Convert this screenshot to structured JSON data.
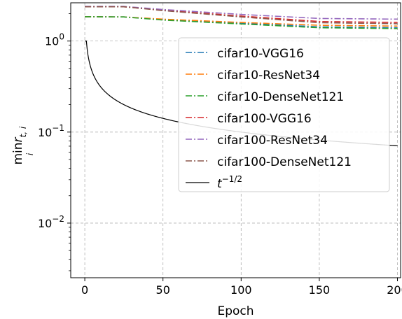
{
  "chart_data": {
    "type": "line",
    "xlabel": "Epoch",
    "ylabel_main": "min",
    "ylabel_sub": "i",
    "ylabel_subscript": "r",
    "ylabel_subscript_index": "t, i",
    "xlim": [
      -9,
      202
    ],
    "ylim_log10": [
      -2.6,
      0.42
    ],
    "yscale": "log",
    "grid": true,
    "legend_position": "upper right",
    "x_ticks": [
      0,
      50,
      100,
      150,
      200
    ],
    "x_tick_labels": [
      "0",
      "50",
      "100",
      "150",
      "200"
    ],
    "y_ticks_log10": [
      0,
      -1,
      -2
    ],
    "y_tick_bases": [
      "10",
      "10",
      "10"
    ],
    "y_tick_exponents": [
      "0",
      "−1",
      "−2"
    ],
    "series": [
      {
        "name": "cifar10-VGG16",
        "color": "#1f77b4",
        "style": "dashdot",
        "x": [
          0,
          25,
          50,
          100,
          150,
          200
        ],
        "y": [
          1.85,
          1.84,
          1.72,
          1.57,
          1.43,
          1.4
        ]
      },
      {
        "name": "cifar10-ResNet34",
        "color": "#ff7f0e",
        "style": "dashdot",
        "x": [
          0,
          25,
          50,
          100,
          150,
          200
        ],
        "y": [
          1.85,
          1.84,
          1.74,
          1.6,
          1.49,
          1.46
        ]
      },
      {
        "name": "cifar10-DenseNet121",
        "color": "#2ca02c",
        "style": "dashdot",
        "x": [
          0,
          25,
          50,
          100,
          150,
          200
        ],
        "y": [
          1.85,
          1.84,
          1.7,
          1.54,
          1.4,
          1.37
        ]
      },
      {
        "name": "cifar100-VGG16",
        "color": "#d62728",
        "style": "dashdot",
        "x": [
          0,
          25,
          50,
          100,
          150,
          200
        ],
        "y": [
          2.38,
          2.38,
          2.18,
          1.88,
          1.64,
          1.6
        ]
      },
      {
        "name": "cifar100-ResNet34",
        "color": "#9467bd",
        "style": "dashdot",
        "x": [
          0,
          25,
          50,
          100,
          150,
          200
        ],
        "y": [
          2.4,
          2.4,
          2.22,
          1.96,
          1.77,
          1.74
        ]
      },
      {
        "name": "cifar100-DenseNet121",
        "color": "#8c564b",
        "style": "dashdot",
        "x": [
          0,
          25,
          50,
          100,
          150,
          200
        ],
        "y": [
          2.38,
          2.38,
          2.16,
          1.84,
          1.59,
          1.55
        ]
      },
      {
        "name_base": "t",
        "name_exponent": "−1/2",
        "color": "#000000",
        "style": "solid",
        "function": "t^(-1/2)",
        "x": [
          0,
          200
        ]
      }
    ]
  }
}
